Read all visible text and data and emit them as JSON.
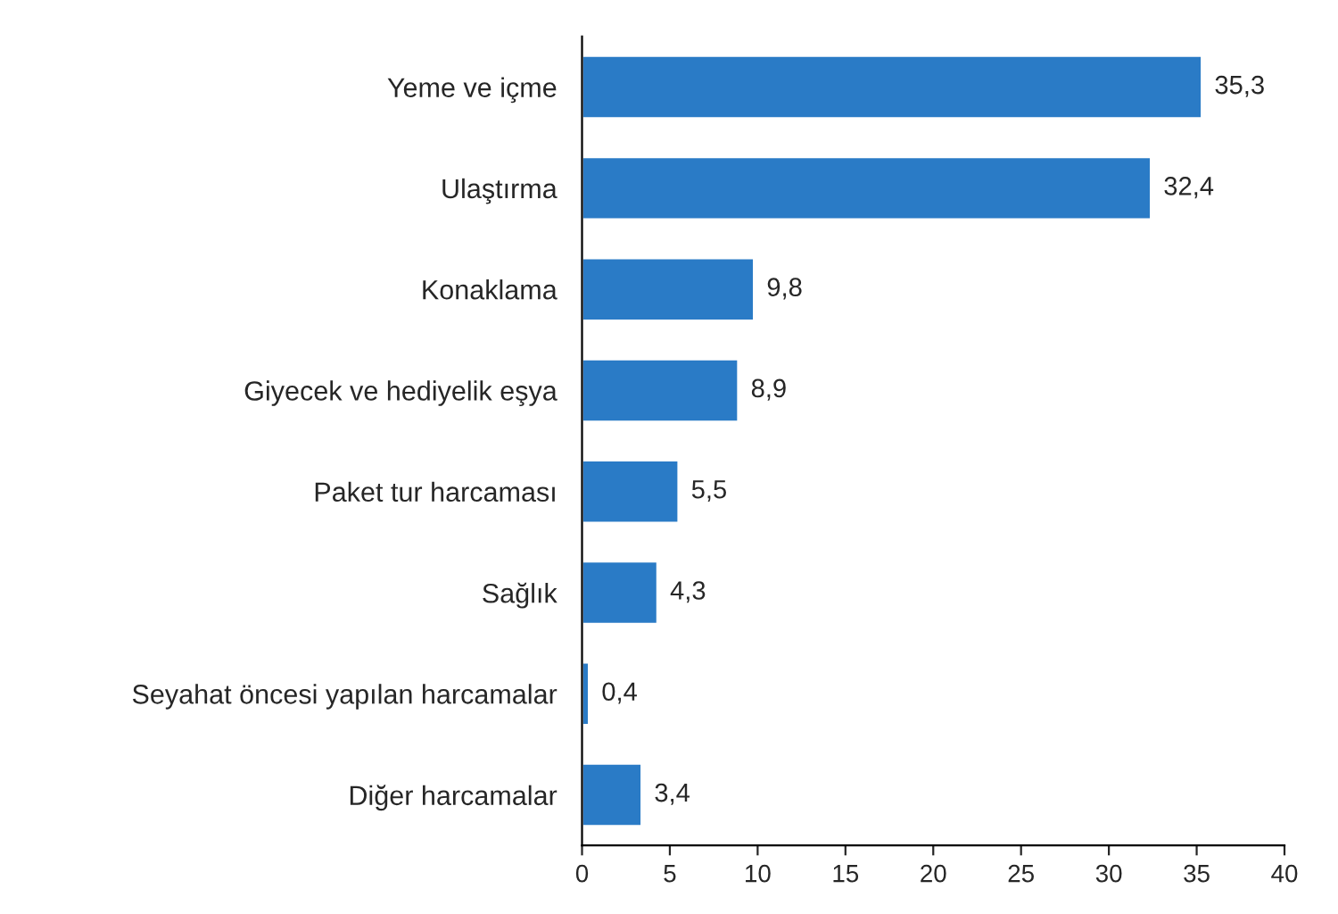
{
  "chart_data": {
    "type": "bar",
    "orientation": "horizontal",
    "categories": [
      "Yeme ve içme",
      "Ulaştırma",
      "Konaklama",
      "Giyecek ve hediyelik eşya",
      "Paket tur harcaması",
      "Sağlık",
      "Seyahat öncesi yapılan harcamalar",
      "Diğer harcamalar"
    ],
    "values": [
      35.3,
      32.4,
      9.8,
      8.9,
      5.5,
      4.3,
      0.4,
      3.4
    ],
    "value_labels": [
      "35,3",
      "32,4",
      "9,8",
      "8,9",
      "5,5",
      "4,3",
      "0,4",
      "3,4"
    ],
    "color": "#2a7bc6",
    "xlim": [
      0,
      40
    ],
    "xticks": [
      0,
      5,
      10,
      15,
      20,
      25,
      30,
      35,
      40
    ],
    "grid": false,
    "legend": false
  }
}
